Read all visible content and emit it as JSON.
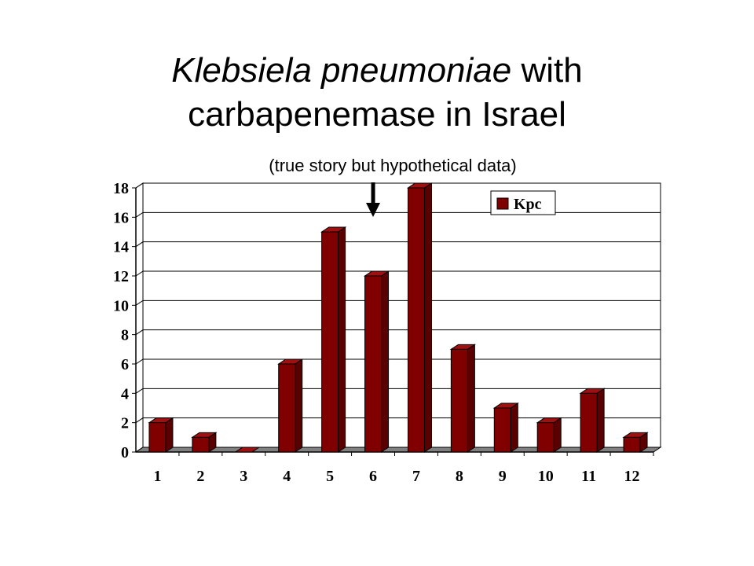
{
  "title": {
    "italic_part": "Klebsiela pneumoniae",
    "rest_line1": " with",
    "line2": "carbapenemase in Israel"
  },
  "subtitle": "(true story but hypothetical data)",
  "chart_data": {
    "type": "bar",
    "categories": [
      "1",
      "2",
      "3",
      "4",
      "5",
      "6",
      "7",
      "8",
      "9",
      "10",
      "11",
      "12"
    ],
    "series": [
      {
        "name": "Kpc",
        "values": [
          2,
          1,
          0,
          6,
          15,
          12,
          18,
          7,
          3,
          2,
          4,
          1
        ]
      }
    ],
    "title": "",
    "xlabel": "",
    "ylabel": "",
    "ylim": [
      0,
      18
    ],
    "yticks": [
      0,
      2,
      4,
      6,
      8,
      10,
      12,
      14,
      16,
      18
    ],
    "grid": true,
    "legend": "top-right",
    "style": "3d",
    "colors": {
      "bar_front": "#800000",
      "bar_side": "#5a0000",
      "bar_top": "#a01010",
      "floor": "#808080"
    },
    "annotations": [
      {
        "type": "arrow",
        "pointing": "down",
        "at_category": "6"
      }
    ]
  }
}
